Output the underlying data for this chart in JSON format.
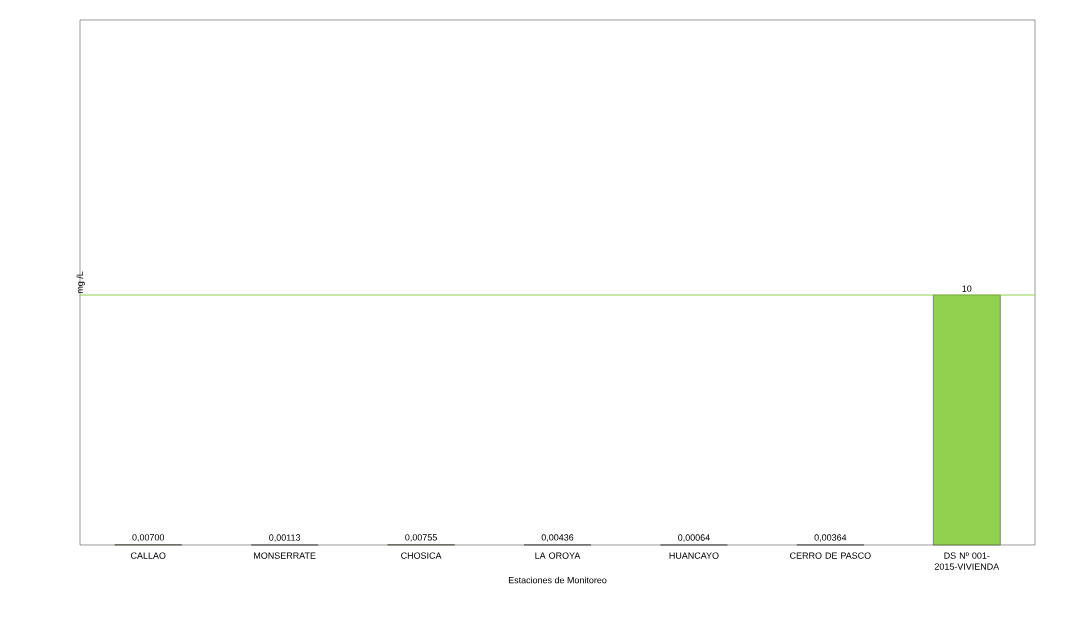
{
  "chart_data": {
    "type": "bar",
    "xlabel": "Estaciones de Monitoreo",
    "ylabel": "mg /L",
    "categories": [
      "CALLAO",
      "MONSERRATE",
      "CHOSICA",
      "LA OROYA",
      "HUANCAYO",
      "CERRO DE PASCO",
      "DS Nº 001-2015-VIVIENDA"
    ],
    "values": [
      0.007,
      0.00113,
      0.00755,
      0.00436,
      0.00064,
      0.00364,
      10
    ],
    "value_labels": [
      "0,00700",
      "0,00113",
      "0,00755",
      "0,00436",
      "0,00064",
      "0,00364",
      "10"
    ],
    "color": "#92d050",
    "ylim": [
      0,
      21
    ],
    "tick_labels": "x",
    "ref_lines": [
      {
        "axis": "y",
        "value": 10,
        "color": "#92d050"
      }
    ],
    "grid": false
  }
}
